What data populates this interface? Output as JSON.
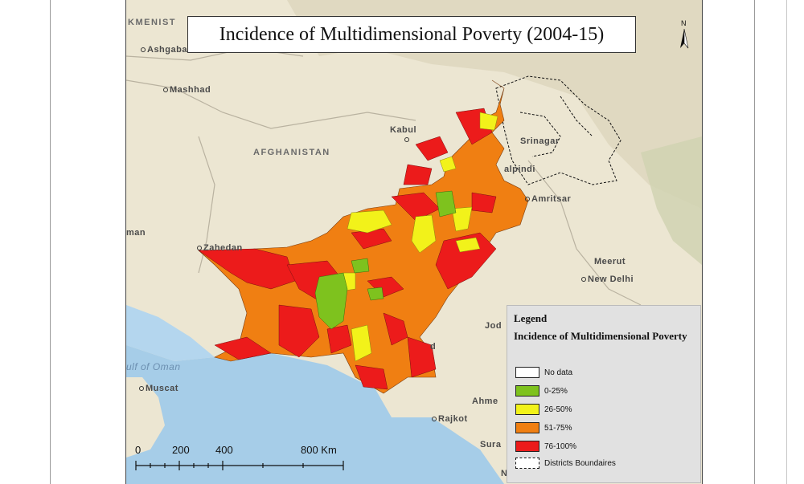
{
  "map": {
    "title": "Incidence of Multidimensional Poverty (2004-15)",
    "north_arrow_label": "N",
    "labels": {
      "turkmenistan": "KMENIST",
      "ashgabat": "Ashgaba",
      "mashhad": "Mashhad",
      "kabul": "Kabul",
      "afghanistan": "AFGHANISTAN",
      "srinagar": "Srinagar",
      "rawalpindi": "alpindi",
      "amritsar": "Amritsar",
      "iran": "man",
      "zahedan": "Zahedan",
      "meerut": "Meerut",
      "new_delhi": "New Delhi",
      "jodhpur": "Jod",
      "hyderabad": "d",
      "gulf_of_oman": "ulf of Oman",
      "muscat": "Muscat",
      "ahmedabad": "Ahme",
      "rajkot": "Rajkot",
      "surat": "Sura",
      "nashik": "Nashik"
    },
    "legend": {
      "title": "Legend",
      "subtitle": "Incidence of Multidimensional Poverty",
      "items": [
        {
          "label": "No data",
          "color": "#ffffff"
        },
        {
          "label": "0-25%",
          "color": "#7ec21e"
        },
        {
          "label": "26-50%",
          "color": "#f2f21a"
        },
        {
          "label": "51-75%",
          "color": "#f07f12"
        },
        {
          "label": "76-100%",
          "color": "#ec1b1b"
        },
        {
          "label": "Districts Boundaires",
          "color": "dashed"
        }
      ]
    },
    "scale": {
      "ticks": [
        "0",
        "200",
        "400",
        "800 Km"
      ]
    },
    "colors": {
      "land": "#ece6d2",
      "sea": "#a6cde8",
      "deep_sea": "#8ec0e4",
      "mountains": "#d7d1b7",
      "boundary": "#ffffff"
    }
  }
}
